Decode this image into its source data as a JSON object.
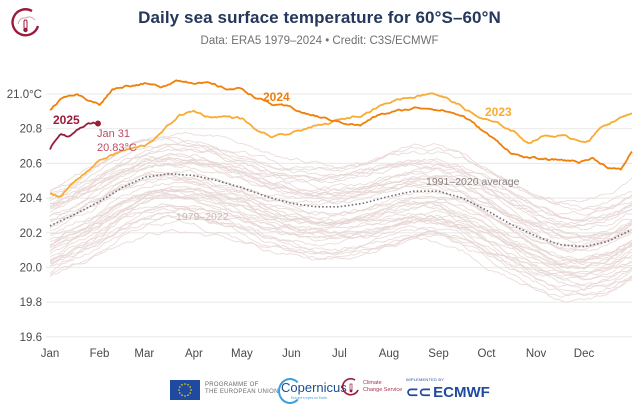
{
  "header": {
    "title": "Daily sea surface temperature for 60°S–60°N",
    "subtitle": "Data: ERA5 1979–2024 • Credit: C3S/ECMWF",
    "logo_icon": "climate-change-service-thermometer-icon"
  },
  "footer": {
    "eu_label_line1": "PROGRAMME OF",
    "eu_label_line2": "THE EUROPEAN UNION",
    "copernicus_label": "Copernicus",
    "copernicus_sub": "Europe's eyes on Earth",
    "c3s_line1": "Climate",
    "c3s_line2": "Change Service",
    "ecmwf_small": "IMPLEMENTED BY",
    "ecmwf_label": "ECMWF"
  },
  "colors": {
    "title": "#25375a",
    "y2025": "#9b1b3b",
    "y2024": "#f07f0a",
    "y2023": "#f9ac33",
    "historical": "#e6d6d3",
    "average": "#6e6e6e",
    "grid": "#ececec"
  },
  "chart_data": {
    "type": "line",
    "title": "Daily sea surface temperature for 60°S–60°N",
    "xlabel": "",
    "ylabel": "°C",
    "ylim": [
      19.6,
      21.1
    ],
    "xlim": [
      1,
      365
    ],
    "grid": true,
    "x_tick_labels": [
      "Jan",
      "Feb",
      "Mar",
      "Apr",
      "May",
      "Jun",
      "Jul",
      "Aug",
      "Sep",
      "Oct",
      "Nov",
      "Dec"
    ],
    "x_tick_days": [
      1,
      32,
      60,
      91,
      121,
      152,
      182,
      213,
      244,
      274,
      305,
      335
    ],
    "y_ticks": [
      19.6,
      19.8,
      20.0,
      20.2,
      20.4,
      20.6,
      20.8,
      21.0
    ],
    "y_tick_labels": [
      "19.6",
      "19.8",
      "20.0",
      "20.2",
      "20.4",
      "20.6",
      "20.8",
      "21.0°C"
    ],
    "series": [
      {
        "name": "1991–2020 average",
        "style": "dotted",
        "x": [
          1,
          15,
          32,
          46,
          60,
          75,
          91,
          106,
          121,
          136,
          152,
          167,
          182,
          197,
          213,
          228,
          244,
          259,
          274,
          289,
          305,
          320,
          335,
          350,
          365
        ],
        "values": [
          20.24,
          20.3,
          20.38,
          20.46,
          20.52,
          20.54,
          20.53,
          20.5,
          20.46,
          20.41,
          20.37,
          20.35,
          20.35,
          20.37,
          20.41,
          20.44,
          20.44,
          20.4,
          20.33,
          20.25,
          20.18,
          20.13,
          20.12,
          20.15,
          20.22
        ]
      },
      {
        "name": "2023",
        "x": [
          1,
          8,
          15,
          32,
          46,
          60,
          70,
          82,
          91,
          100,
          112,
          121,
          130,
          140,
          152,
          160,
          172,
          182,
          195,
          207,
          218,
          230,
          240,
          248,
          258,
          268,
          280,
          290,
          300,
          310,
          320,
          330,
          338,
          347,
          355,
          365
        ],
        "values": [
          20.43,
          20.41,
          20.48,
          20.62,
          20.67,
          20.7,
          20.77,
          20.88,
          20.9,
          20.87,
          20.87,
          20.86,
          20.79,
          20.75,
          20.77,
          20.8,
          20.82,
          20.85,
          20.88,
          20.93,
          20.97,
          20.99,
          21.01,
          20.98,
          20.93,
          20.87,
          20.83,
          20.79,
          20.72,
          20.76,
          20.76,
          20.74,
          20.73,
          20.82,
          20.85,
          20.89
        ]
      },
      {
        "name": "2024",
        "x": [
          1,
          10,
          18,
          25,
          32,
          40,
          50,
          60,
          70,
          80,
          91,
          100,
          110,
          121,
          130,
          140,
          152,
          160,
          172,
          182,
          195,
          207,
          218,
          230,
          240,
          250,
          260,
          270,
          280,
          290,
          300,
          312,
          322,
          332,
          340,
          350,
          358,
          365
        ],
        "values": [
          20.91,
          20.99,
          21.0,
          20.96,
          20.94,
          21.03,
          21.05,
          21.06,
          21.04,
          21.08,
          21.07,
          21.06,
          21.03,
          21.03,
          20.98,
          20.94,
          20.92,
          20.89,
          20.86,
          20.84,
          20.82,
          20.88,
          20.9,
          20.92,
          20.92,
          20.9,
          20.87,
          20.8,
          20.73,
          20.66,
          20.63,
          20.62,
          20.62,
          20.61,
          20.63,
          20.58,
          20.56,
          20.67
        ]
      },
      {
        "name": "2025",
        "x": [
          1,
          4,
          8,
          12,
          16,
          20,
          24,
          28,
          31
        ],
        "values": [
          20.68,
          20.73,
          20.77,
          20.75,
          20.78,
          20.8,
          20.82,
          20.83,
          20.83
        ]
      }
    ],
    "background_series": {
      "name": "1979–2022",
      "count": 44,
      "note": "individual years shown as faint lines spanning roughly 19.7–20.75 °C"
    },
    "annotations": [
      {
        "text": "2025",
        "target": "2025",
        "position": "left, above line start"
      },
      {
        "text": "Jan 31",
        "target": "2025 end point"
      },
      {
        "text": "20.83°C",
        "target": "2025 end point"
      },
      {
        "text": "2024",
        "target": "2024 line, mid-May"
      },
      {
        "text": "2023",
        "target": "2023 line, mid-Oct"
      },
      {
        "text": "1991–2020 average",
        "target": "average line, Aug–Sep"
      },
      {
        "text": "1979–2022",
        "target": "background lines, Mar"
      }
    ]
  }
}
